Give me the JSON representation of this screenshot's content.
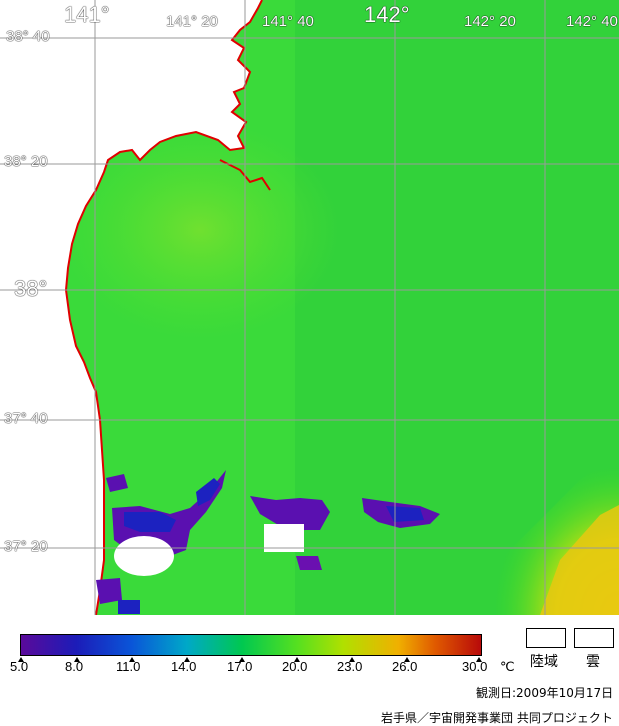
{
  "map": {
    "lon_labels": [
      {
        "text": "141°",
        "big": true
      },
      {
        "text": "141° 20",
        "big": false
      },
      {
        "text": "141° 40",
        "big": false
      },
      {
        "text": "142°",
        "big": true
      },
      {
        "text": "142° 20",
        "big": false
      },
      {
        "text": "142° 40",
        "big": false
      }
    ],
    "lat_labels": [
      {
        "text": "38° 40",
        "big": false
      },
      {
        "text": "38° 20",
        "big": false
      },
      {
        "text": "38°",
        "big": true
      },
      {
        "text": "37° 40",
        "big": false
      },
      {
        "text": "37° 20",
        "big": false
      }
    ],
    "coast_color": "#e00000",
    "grid_color": "#9a9a9a",
    "sea_color": "#33dd33",
    "cold_color": "#5a10b0",
    "warm_color": "#e8d020"
  },
  "scale": {
    "labels": [
      "5.0",
      "8.0",
      "11.0",
      "14.0",
      "17.0",
      "20.0",
      "23.0",
      "26.0",
      "30.0"
    ],
    "unit": "℃"
  },
  "legend": {
    "land": "陸域",
    "cloud": "雲"
  },
  "footer": {
    "observation_date": "観測日:2009年10月17日",
    "credit": "岩手県／宇宙開発事業団 共同プロジェクト"
  }
}
